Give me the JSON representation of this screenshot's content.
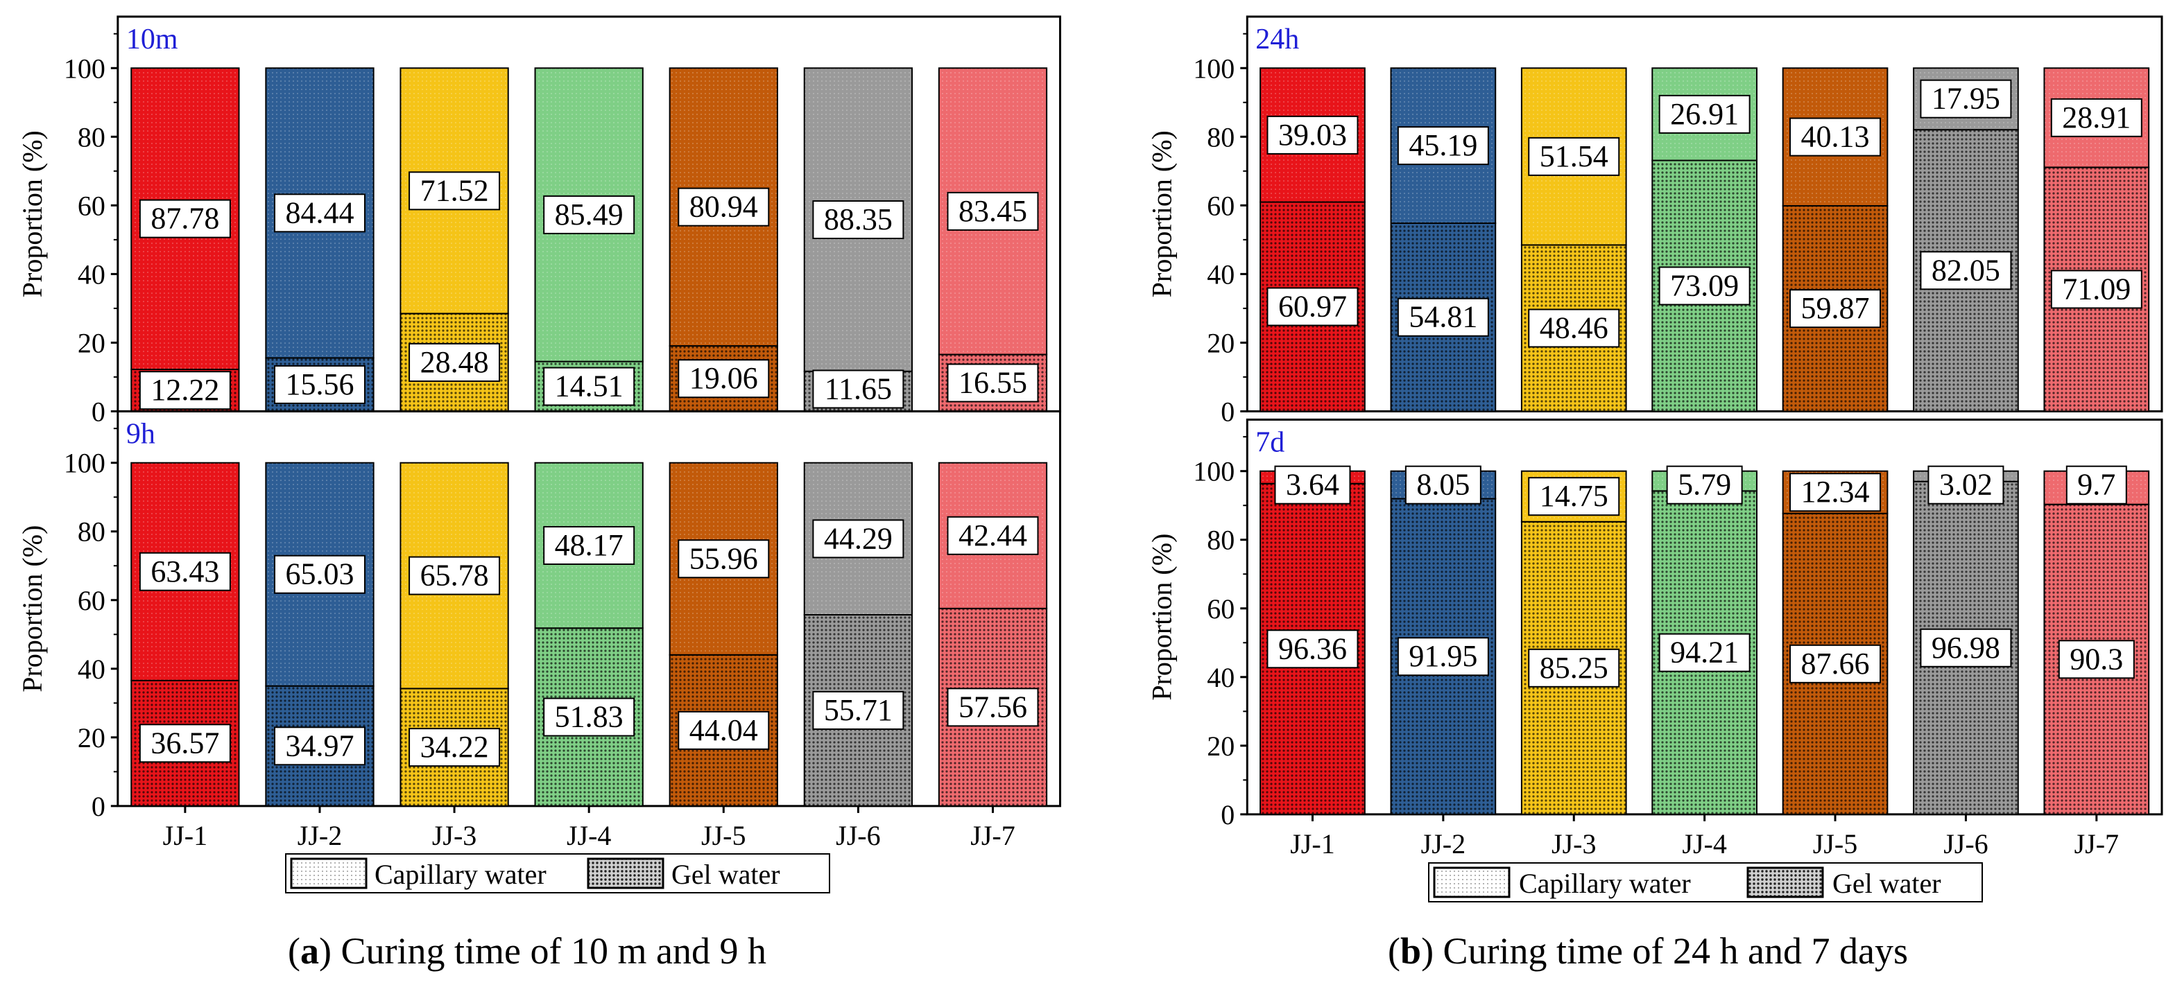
{
  "colors": {
    "JJ-1": "#e8141a",
    "JJ-2": "#2e5e95",
    "JJ-3": "#f5c418",
    "JJ-4": "#7fcf86",
    "JJ-5": "#c25a0a",
    "JJ-6": "#9a9a9a",
    "JJ-7": "#ee6a6e",
    "panel_label": "#1f1fd6",
    "axis": "#000000"
  },
  "captions": [
    {
      "letter": "a",
      "text": ") Curing time of 10 m and 9 h"
    },
    {
      "letter": "b",
      "text": ") Curing time of 24 h and 7 days"
    }
  ],
  "legend": {
    "capillary": "Capillary water",
    "gel": "Gel water"
  },
  "chart_data": [
    {
      "type": "bar",
      "stacked": true,
      "figure": "a",
      "panel_label": "10m",
      "categories": [
        "JJ-1",
        "JJ-2",
        "JJ-3",
        "JJ-4",
        "JJ-5",
        "JJ-6",
        "JJ-7"
      ],
      "series": [
        {
          "name": "Gel water",
          "values": [
            12.22,
            15.56,
            28.48,
            14.51,
            19.06,
            11.65,
            16.55
          ]
        },
        {
          "name": "Capillary water",
          "values": [
            87.78,
            84.44,
            71.52,
            85.49,
            80.94,
            88.35,
            83.45
          ]
        }
      ],
      "ylabel": "Proportion (%)",
      "ylim": [
        0,
        115
      ],
      "yticks": [
        "0",
        "20",
        "40",
        "60",
        "80",
        "100"
      ],
      "show_x_ticklabels": false
    },
    {
      "type": "bar",
      "stacked": true,
      "figure": "a",
      "panel_label": "9h",
      "categories": [
        "JJ-1",
        "JJ-2",
        "JJ-3",
        "JJ-4",
        "JJ-5",
        "JJ-6",
        "JJ-7"
      ],
      "series": [
        {
          "name": "Gel water",
          "values": [
            36.57,
            34.97,
            34.22,
            51.83,
            44.04,
            55.71,
            57.56
          ]
        },
        {
          "name": "Capillary water",
          "values": [
            63.43,
            65.03,
            65.78,
            48.17,
            55.96,
            44.29,
            42.44
          ]
        }
      ],
      "ylabel": "Proportion (%)",
      "ylim": [
        0,
        115
      ],
      "yticks": [
        "0",
        "20",
        "40",
        "60",
        "80",
        "100"
      ],
      "show_x_ticklabels": true
    },
    {
      "type": "bar",
      "stacked": true,
      "figure": "b",
      "panel_label": "24h",
      "categories": [
        "JJ-1",
        "JJ-2",
        "JJ-3",
        "JJ-4",
        "JJ-5",
        "JJ-6",
        "JJ-7"
      ],
      "series": [
        {
          "name": "Gel water",
          "values": [
            60.97,
            54.81,
            48.46,
            73.09,
            59.87,
            82.05,
            71.09
          ]
        },
        {
          "name": "Capillary water",
          "values": [
            39.03,
            45.19,
            51.54,
            26.91,
            40.13,
            17.95,
            28.91
          ]
        }
      ],
      "ylabel": "Proportion (%)",
      "ylim": [
        0,
        115
      ],
      "yticks": [
        "0",
        "20",
        "40",
        "60",
        "80",
        "100"
      ],
      "show_x_ticklabels": false
    },
    {
      "type": "bar",
      "stacked": true,
      "figure": "b",
      "panel_label": "7d",
      "categories": [
        "JJ-1",
        "JJ-2",
        "JJ-3",
        "JJ-4",
        "JJ-5",
        "JJ-6",
        "JJ-7"
      ],
      "series": [
        {
          "name": "Gel water",
          "values": [
            96.36,
            91.95,
            85.25,
            94.21,
            87.66,
            96.98,
            90.3
          ]
        },
        {
          "name": "Capillary water",
          "values": [
            3.64,
            8.05,
            14.75,
            5.79,
            12.34,
            3.02,
            9.7
          ]
        }
      ],
      "ylabel": "Proportion (%)",
      "ylim": [
        0,
        115
      ],
      "yticks": [
        "0",
        "20",
        "40",
        "60",
        "80",
        "100"
      ],
      "show_x_ticklabels": true
    }
  ]
}
